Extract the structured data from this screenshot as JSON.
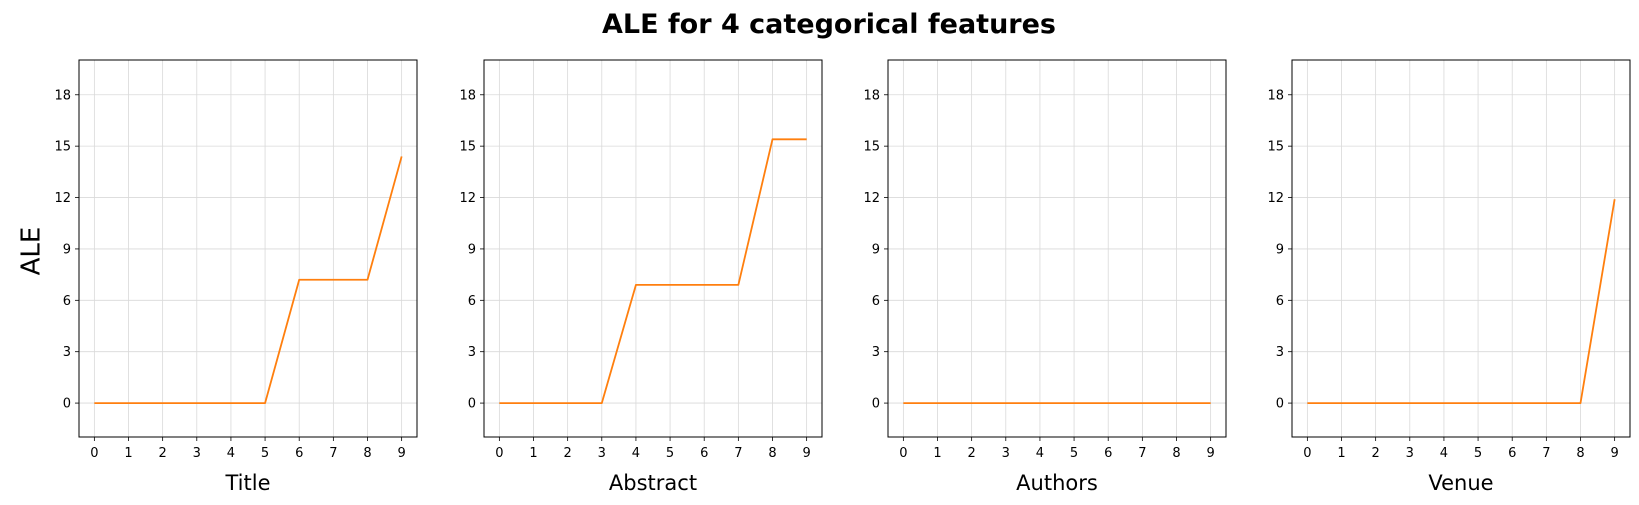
{
  "chart_data": {
    "type": "line",
    "title": "ALE for 4 categorical features",
    "ylabel": "ALE",
    "line_color": "#ff7f0e",
    "grid": true,
    "panels": [
      {
        "xlabel": "Title",
        "x": [
          0,
          1,
          2,
          3,
          4,
          5,
          6,
          7,
          8,
          9
        ],
        "values": [
          0,
          0,
          0,
          0,
          0,
          0,
          7.2,
          7.2,
          7.2,
          14.4
        ]
      },
      {
        "xlabel": "Abstract",
        "x": [
          0,
          1,
          2,
          3,
          4,
          5,
          6,
          7,
          8,
          9
        ],
        "values": [
          0,
          0,
          0,
          0,
          6.9,
          6.9,
          6.9,
          6.9,
          15.4,
          15.4
        ]
      },
      {
        "xlabel": "Authors",
        "x": [
          0,
          1,
          2,
          3,
          4,
          5,
          6,
          7,
          8,
          9
        ],
        "values": [
          0,
          0,
          0,
          0,
          0,
          0,
          0,
          0,
          0,
          0
        ]
      },
      {
        "xlabel": "Venue",
        "x": [
          0,
          1,
          2,
          3,
          4,
          5,
          6,
          7,
          8,
          9
        ],
        "values": [
          0,
          0,
          0,
          0,
          0,
          0,
          0,
          0,
          0,
          11.9
        ]
      }
    ],
    "xlim": [
      -0.45,
      9.45
    ],
    "ylim": [
      -1.98,
      20.03
    ],
    "xticks": [
      0,
      1,
      2,
      3,
      4,
      5,
      6,
      7,
      8,
      9
    ],
    "yticks": [
      0,
      3,
      6,
      9,
      12,
      15,
      18
    ]
  }
}
